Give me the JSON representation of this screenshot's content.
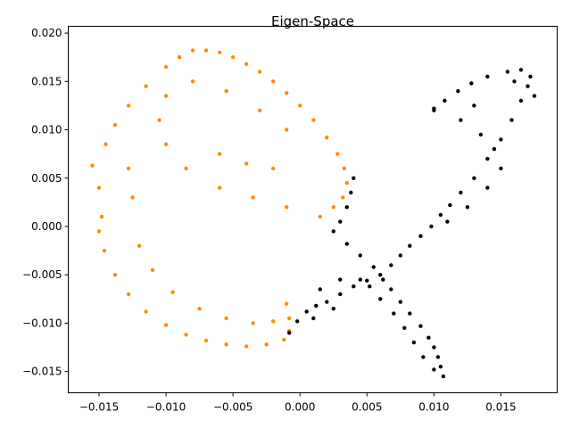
{
  "chart_data": {
    "type": "scatter",
    "title": "Eigen-Space",
    "xlabel": "",
    "ylabel": "",
    "xlim": [
      -0.0173,
      0.0192
    ],
    "ylim": [
      -0.0172,
      0.0207
    ],
    "xticks": [
      -0.015,
      -0.01,
      -0.005,
      0.0,
      0.005,
      0.01,
      0.015
    ],
    "xtick_labels": [
      "−0.015",
      "−0.010",
      "−0.005",
      "0.000",
      "0.005",
      "0.010",
      "0.015"
    ],
    "yticks": [
      -0.015,
      -0.01,
      -0.005,
      0.0,
      0.005,
      0.01,
      0.015,
      0.02
    ],
    "ytick_labels": [
      "−0.015",
      "−0.010",
      "−0.005",
      "0.000",
      "0.005",
      "0.010",
      "0.015",
      "0.020"
    ],
    "grid": false,
    "legend": "none",
    "series": [
      {
        "color": "#ff8c00",
        "description_points": "ring-shaped cluster on the left",
        "points": [
          [
            -0.0155,
            0.0063
          ],
          [
            -0.015,
            0.004
          ],
          [
            -0.0148,
            0.001
          ],
          [
            -0.015,
            -0.0005
          ],
          [
            -0.0146,
            -0.0025
          ],
          [
            -0.0138,
            -0.005
          ],
          [
            -0.0128,
            -0.007
          ],
          [
            -0.0115,
            -0.0088
          ],
          [
            -0.01,
            -0.0102
          ],
          [
            -0.0085,
            -0.0112
          ],
          [
            -0.007,
            -0.0118
          ],
          [
            -0.0055,
            -0.0122
          ],
          [
            -0.004,
            -0.0124
          ],
          [
            -0.0025,
            -0.0122
          ],
          [
            -0.0012,
            -0.0117
          ],
          [
            -0.0008,
            -0.0108
          ],
          [
            -0.0008,
            -0.0095
          ],
          [
            -0.001,
            -0.008
          ],
          [
            -0.0145,
            0.0085
          ],
          [
            -0.0138,
            0.0105
          ],
          [
            -0.0128,
            0.0125
          ],
          [
            -0.0115,
            0.0145
          ],
          [
            -0.01,
            0.0165
          ],
          [
            -0.009,
            0.0175
          ],
          [
            -0.008,
            0.0182
          ],
          [
            -0.007,
            0.0182
          ],
          [
            -0.006,
            0.018
          ],
          [
            -0.005,
            0.0175
          ],
          [
            -0.004,
            0.0168
          ],
          [
            -0.003,
            0.016
          ],
          [
            -0.002,
            0.015
          ],
          [
            -0.001,
            0.0138
          ],
          [
            0.0,
            0.0125
          ],
          [
            0.001,
            0.011
          ],
          [
            0.002,
            0.0092
          ],
          [
            0.0028,
            0.0075
          ],
          [
            0.0033,
            0.006
          ],
          [
            0.0035,
            0.0045
          ],
          [
            0.0032,
            0.003
          ],
          [
            0.0025,
            0.002
          ],
          [
            0.0015,
            0.001
          ],
          [
            -0.001,
            0.002
          ],
          [
            -0.0035,
            0.003
          ],
          [
            -0.006,
            0.004
          ],
          [
            -0.0085,
            0.006
          ],
          [
            -0.01,
            0.0085
          ],
          [
            -0.0105,
            0.011
          ],
          [
            -0.01,
            0.0135
          ],
          [
            -0.008,
            0.015
          ],
          [
            -0.0055,
            0.014
          ],
          [
            -0.003,
            0.012
          ],
          [
            -0.001,
            0.01
          ],
          [
            -0.012,
            -0.002
          ],
          [
            -0.011,
            -0.0045
          ],
          [
            -0.0095,
            -0.0068
          ],
          [
            -0.0075,
            -0.0085
          ],
          [
            -0.0055,
            -0.0095
          ],
          [
            -0.0035,
            -0.01
          ],
          [
            -0.002,
            -0.0098
          ],
          [
            -0.0125,
            0.003
          ],
          [
            -0.0128,
            0.006
          ],
          [
            -0.006,
            0.0075
          ],
          [
            -0.004,
            0.0065
          ],
          [
            -0.002,
            0.006
          ]
        ]
      },
      {
        "color": "#000000",
        "description_points": "loop-shaped cluster on the right crossing near (0.006, -0.005)",
        "points": [
          [
            -0.0008,
            -0.011
          ],
          [
            -0.0002,
            -0.0098
          ],
          [
            0.0005,
            -0.0088
          ],
          [
            0.0012,
            -0.0082
          ],
          [
            0.002,
            -0.0078
          ],
          [
            0.003,
            -0.007
          ],
          [
            0.004,
            -0.0062
          ],
          [
            0.005,
            -0.0056
          ],
          [
            0.006,
            -0.005
          ],
          [
            0.0068,
            -0.004
          ],
          [
            0.0075,
            -0.003
          ],
          [
            0.0082,
            -0.002
          ],
          [
            0.009,
            -0.001
          ],
          [
            0.0098,
            0.0
          ],
          [
            0.0105,
            0.0012
          ],
          [
            0.0112,
            0.0022
          ],
          [
            0.012,
            0.0035
          ],
          [
            0.013,
            0.005
          ],
          [
            0.014,
            0.007
          ],
          [
            0.015,
            0.009
          ],
          [
            0.0158,
            0.011
          ],
          [
            0.0165,
            0.013
          ],
          [
            0.017,
            0.0145
          ],
          [
            0.0172,
            0.0155
          ],
          [
            0.0165,
            0.0162
          ],
          [
            0.0155,
            0.016
          ],
          [
            0.014,
            0.0155
          ],
          [
            0.0128,
            0.0148
          ],
          [
            0.0118,
            0.014
          ],
          [
            0.0108,
            0.013
          ],
          [
            0.01,
            0.0122
          ],
          [
            0.012,
            0.011
          ],
          [
            0.0135,
            0.0095
          ],
          [
            0.0145,
            0.008
          ],
          [
            0.015,
            0.006
          ],
          [
            0.014,
            0.004
          ],
          [
            0.0125,
            0.002
          ],
          [
            0.011,
            0.0005
          ],
          [
            0.004,
            0.005
          ],
          [
            0.0038,
            0.0035
          ],
          [
            0.0035,
            0.002
          ],
          [
            0.003,
            0.0005
          ],
          [
            0.0025,
            -0.0005
          ],
          [
            0.0035,
            -0.0018
          ],
          [
            0.0045,
            -0.003
          ],
          [
            0.0055,
            -0.0042
          ],
          [
            0.0062,
            -0.0055
          ],
          [
            0.0068,
            -0.0065
          ],
          [
            0.0075,
            -0.0078
          ],
          [
            0.0082,
            -0.009
          ],
          [
            0.009,
            -0.0103
          ],
          [
            0.0096,
            -0.0115
          ],
          [
            0.01,
            -0.0125
          ],
          [
            0.0103,
            -0.0135
          ],
          [
            0.0105,
            -0.0145
          ],
          [
            0.0107,
            -0.0155
          ],
          [
            0.01,
            -0.0148
          ],
          [
            0.0092,
            -0.0135
          ],
          [
            0.0085,
            -0.012
          ],
          [
            0.0078,
            -0.0105
          ],
          [
            0.007,
            -0.009
          ],
          [
            0.006,
            -0.0075
          ],
          [
            0.0052,
            -0.0062
          ],
          [
            0.0045,
            -0.0055
          ],
          [
            0.0025,
            -0.0085
          ],
          [
            0.001,
            -0.0095
          ],
          [
            0.0015,
            -0.0065
          ],
          [
            0.003,
            -0.0055
          ],
          [
            0.01,
            0.012
          ],
          [
            0.013,
            0.0125
          ],
          [
            0.016,
            0.015
          ],
          [
            0.0175,
            0.0135
          ]
        ]
      }
    ]
  }
}
